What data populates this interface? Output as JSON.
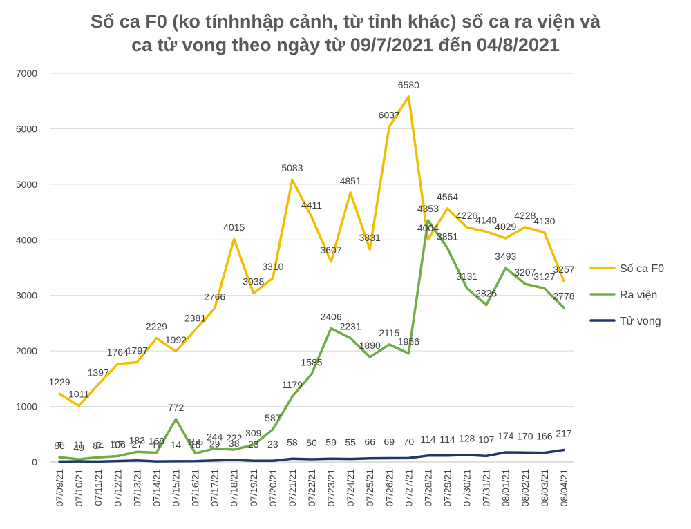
{
  "chart_data": {
    "type": "line",
    "title_line1": "Số ca F0 (ko tínhnhập cảnh, từ tỉnh khác) số ca ra viện và",
    "title_line2": "ca tử vong theo ngày từ 09/7/2021 đến 04/8/2021",
    "xlabel": "",
    "ylabel": "",
    "ylim": [
      0,
      7000
    ],
    "yticks": [
      0,
      1000,
      2000,
      3000,
      4000,
      5000,
      6000,
      7000
    ],
    "grid": true,
    "legend_position": "right",
    "categories": [
      "07/09/21",
      "07/10/21",
      "07/11/21",
      "07/12/21",
      "07/13/21",
      "07/14/21",
      "07/15/21",
      "07/16/21",
      "07/17/21",
      "07/18/21",
      "07/19/21",
      "07/20/21",
      "07/21/21",
      "07/22/21",
      "07/23/21",
      "07/24/21",
      "07/25/21",
      "07/26/21",
      "07/27/21",
      "07/28/21",
      "07/29/21",
      "07/30/21",
      "07/31/21",
      "08/01/21",
      "08/02/21",
      "08/03/21",
      "08/04/21"
    ],
    "series": [
      {
        "name": "Số ca F0",
        "color": "#F2BE00",
        "values": [
          1229,
          1011,
          1397,
          1764,
          1797,
          2229,
          1992,
          2381,
          2766,
          4015,
          3038,
          3310,
          5083,
          4411,
          3607,
          4851,
          3831,
          6037,
          6580,
          4004,
          4564,
          4226,
          4148,
          4029,
          4228,
          4130,
          3257
        ]
      },
      {
        "name": "Ra viện",
        "color": "#70AD47",
        "values": [
          86,
          49,
          84,
          106,
          183,
          168,
          772,
          155,
          244,
          222,
          309,
          587,
          1179,
          1585,
          2406,
          2231,
          1890,
          2115,
          1956,
          4353,
          3851,
          3131,
          2826,
          3493,
          3207,
          3127,
          2778
        ]
      },
      {
        "name": "Tử vong",
        "color": "#203864",
        "values": [
          7,
          11,
          8,
          17,
          27,
          11,
          14,
          16,
          29,
          38,
          23,
          23,
          58,
          50,
          59,
          55,
          66,
          69,
          70,
          114,
          114,
          128,
          107,
          174,
          170,
          166,
          217
        ]
      }
    ]
  }
}
